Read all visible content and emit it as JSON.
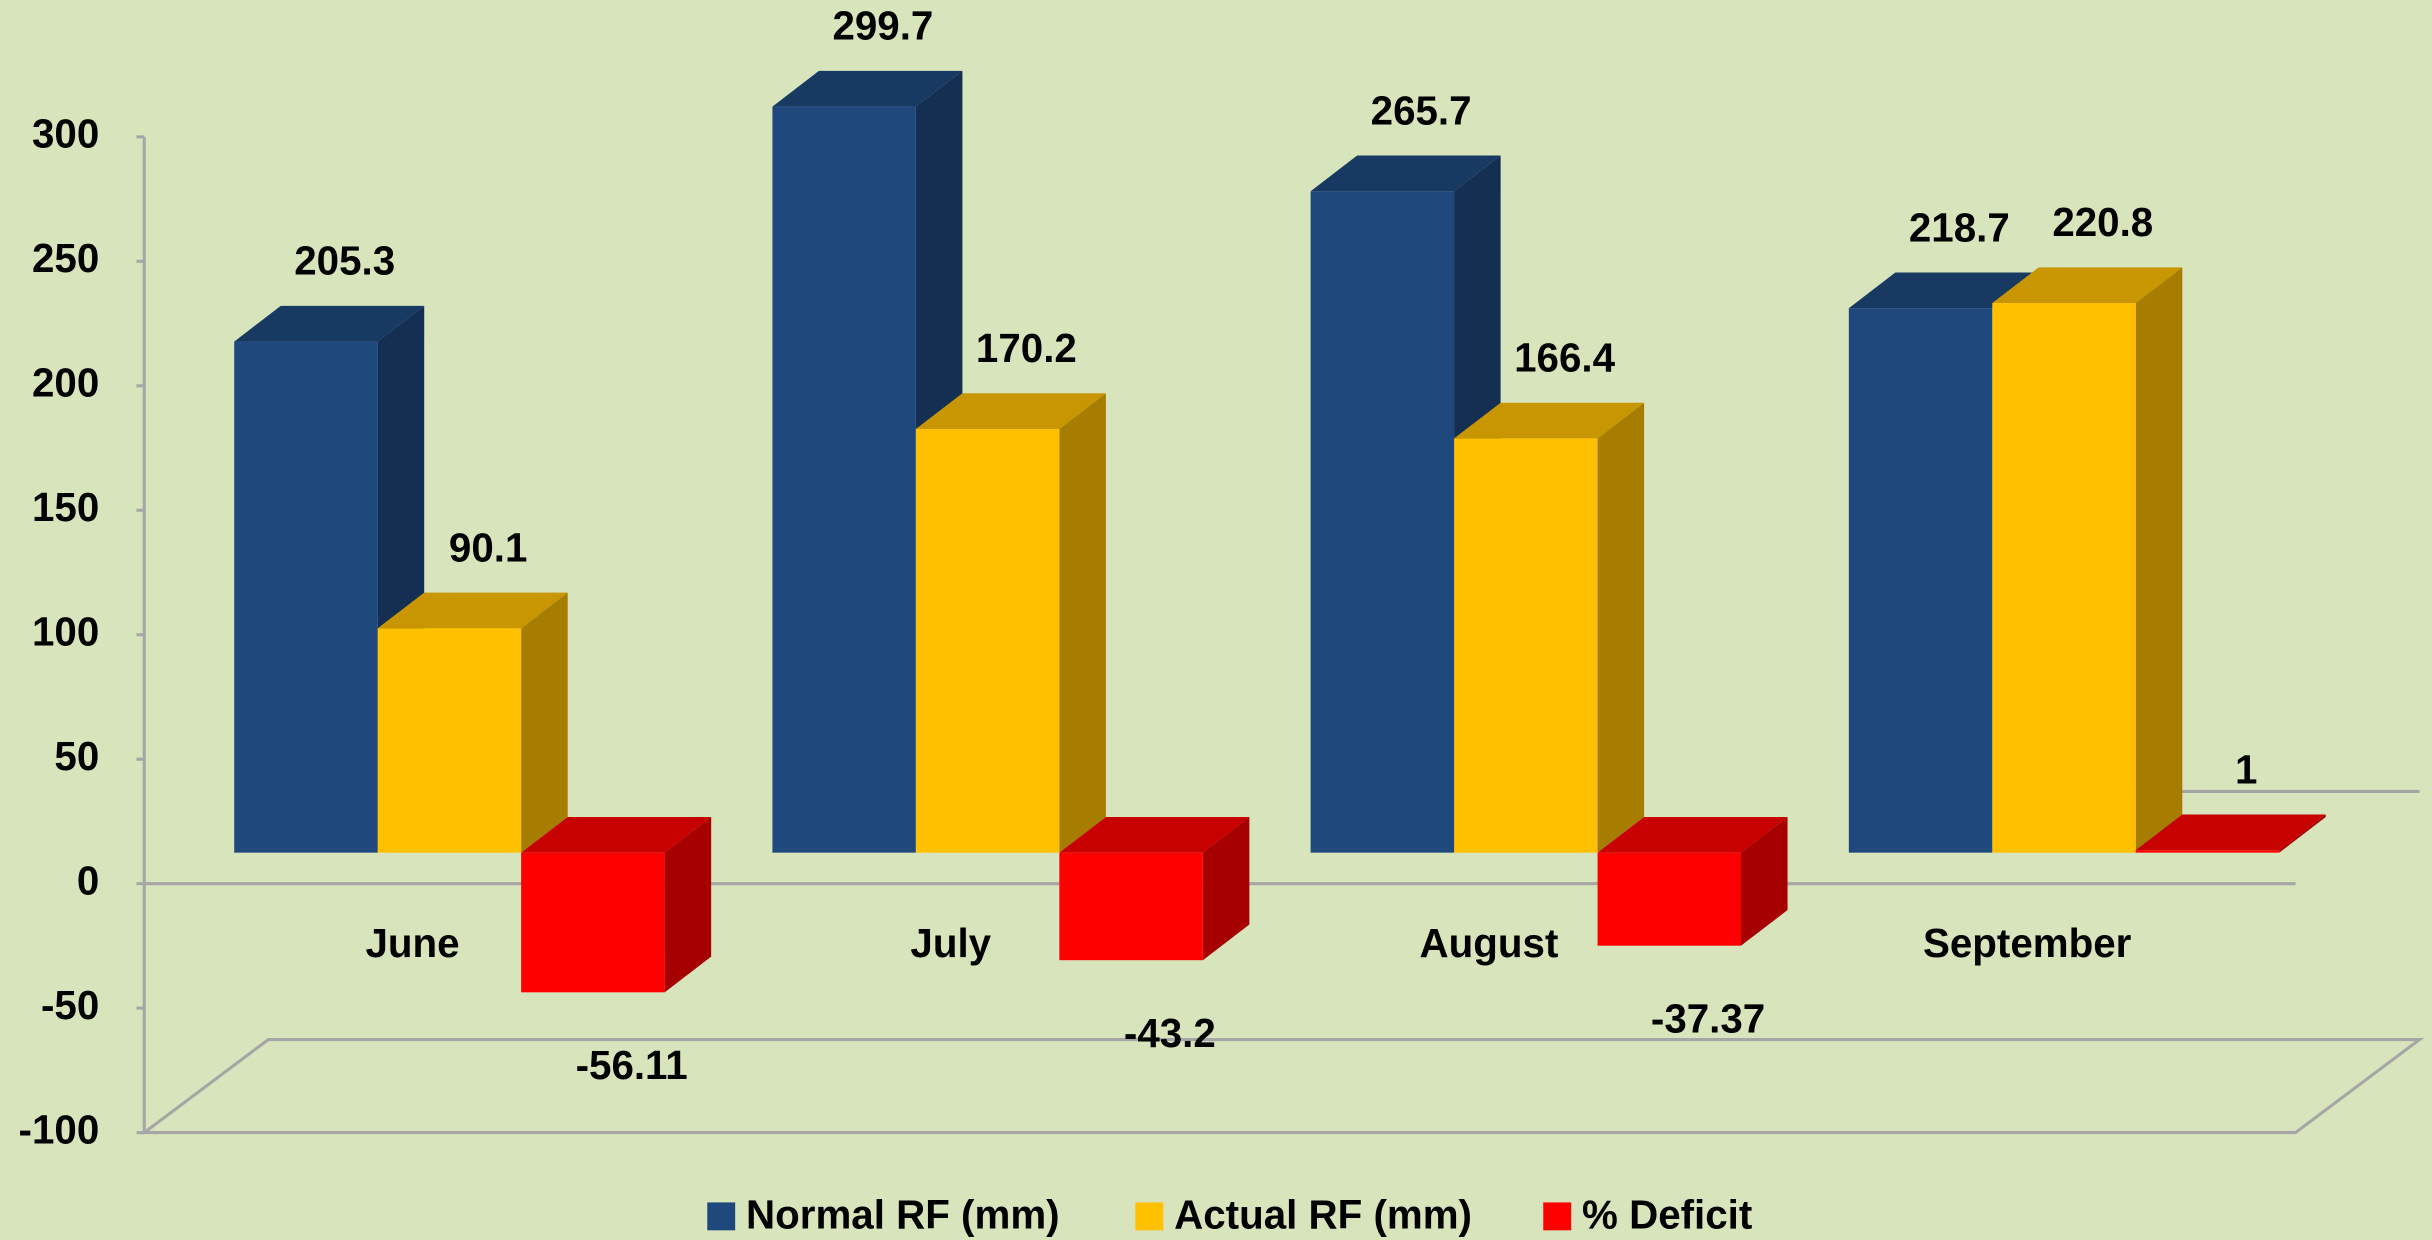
{
  "chart_data": {
    "type": "bar3d",
    "categories": [
      "June",
      "July",
      "August",
      "September"
    ],
    "series": [
      {
        "name": "Normal RF (mm)",
        "color": "#1f497d",
        "values": [
          205.3,
          299.7,
          265.7,
          218.7
        ]
      },
      {
        "name": "Actual RF (mm)",
        "color": "#ffc000",
        "values": [
          90.1,
          170.2,
          166.4,
          220.8
        ]
      },
      {
        "name": "% Deficit",
        "color": "#ff0000",
        "values": [
          -56.11,
          -43.2,
          -37.37,
          1
        ]
      }
    ],
    "ylim": [
      -100,
      300
    ],
    "yticks": [
      -100,
      -50,
      0,
      50,
      100,
      150,
      200,
      250,
      300
    ],
    "legend": "bottom"
  }
}
